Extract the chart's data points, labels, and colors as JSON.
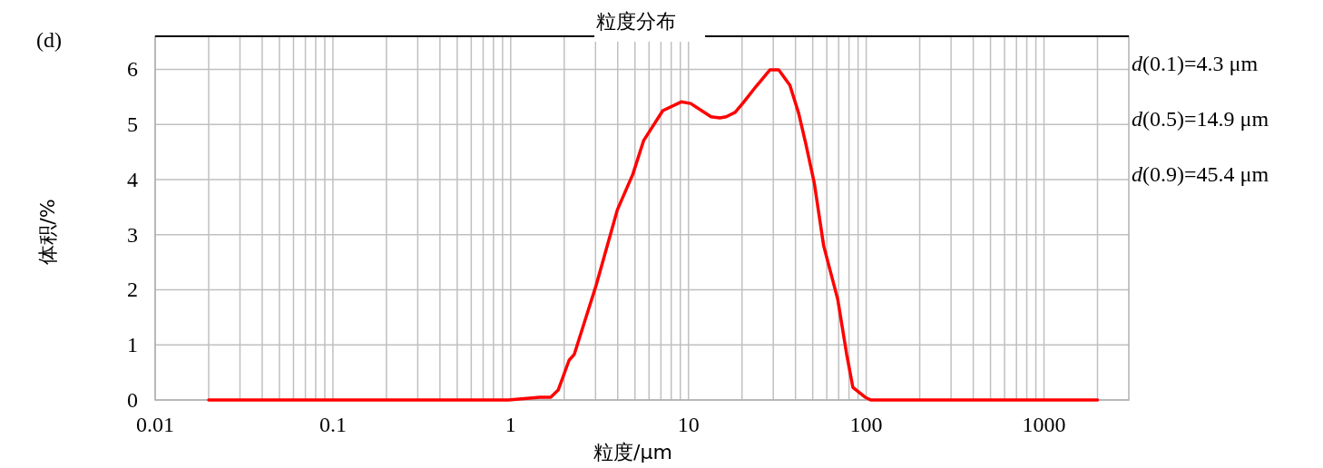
{
  "chart_data": {
    "type": "line",
    "title": "粒度分布",
    "xlabel": "粒度/μm",
    "ylabel": "体积/%",
    "log": "x",
    "grid": true,
    "marker": "none",
    "line_style": "solid",
    "xlim": [
      0.01,
      3000
    ],
    "ylim": [
      0,
      6.6
    ],
    "xticks": [
      0.01,
      {
        "value": 0.02,
        "label": null
      },
      {
        "value": 0.03,
        "label": null
      },
      {
        "value": 0.04,
        "label": null
      },
      {
        "value": 0.05,
        "label": null
      },
      {
        "value": 0.06,
        "label": null
      },
      {
        "value": 0.07,
        "label": null
      },
      {
        "value": 0.08,
        "label": null
      },
      {
        "value": 0.09,
        "label": null
      },
      0.1,
      {
        "value": 0.2,
        "label": null
      },
      {
        "value": 0.3,
        "label": null
      },
      {
        "value": 0.4,
        "label": null
      },
      {
        "value": 0.5,
        "label": null
      },
      {
        "value": 0.6,
        "label": null
      },
      {
        "value": 0.7,
        "label": null
      },
      {
        "value": 0.8,
        "label": null
      },
      {
        "value": 0.9,
        "label": null
      },
      1,
      {
        "value": 2,
        "label": null
      },
      {
        "value": 3,
        "label": null
      },
      {
        "value": 4,
        "label": null
      },
      {
        "value": 5,
        "label": null
      },
      {
        "value": 6,
        "label": null
      },
      {
        "value": 7,
        "label": null
      },
      {
        "value": 8,
        "label": null
      },
      {
        "value": 9,
        "label": null
      },
      10,
      {
        "value": 20,
        "label": null
      },
      {
        "value": 30,
        "label": null
      },
      {
        "value": 40,
        "label": null
      },
      {
        "value": 50,
        "label": null
      },
      {
        "value": 60,
        "label": null
      },
      {
        "value": 70,
        "label": null
      },
      {
        "value": 80,
        "label": null
      },
      {
        "value": 90,
        "label": null
      },
      100,
      {
        "value": 200,
        "label": null
      },
      {
        "value": 300,
        "label": null
      },
      {
        "value": 400,
        "label": null
      },
      {
        "value": 500,
        "label": null
      },
      {
        "value": 600,
        "label": null
      },
      {
        "value": 700,
        "label": null
      },
      {
        "value": 800,
        "label": null
      },
      {
        "value": 900,
        "label": null
      },
      1000,
      {
        "value": 2000,
        "label": null
      }
    ],
    "yticks": [
      0,
      1,
      2,
      3,
      4,
      5,
      6
    ],
    "annotations": [
      "(d)",
      "d(0.1)=4.3 μm",
      "d(0.5)=14.9 μm",
      "d(0.9)=45.4 μm"
    ],
    "series": [
      {
        "color": "#ff0000",
        "x": [
          0.02,
          0.1,
          0.5,
          0.97,
          1.46,
          1.68,
          1.85,
          2.13,
          2.28,
          3.03,
          3.98,
          4.87,
          5.6,
          7.17,
          9.1,
          10.3,
          13.4,
          15.0,
          16.3,
          18.3,
          20.5,
          24.0,
          28.7,
          32.2,
          37.2,
          41.7,
          45.7,
          51.0,
          57.6,
          69.2,
          77.6,
          84.1,
          98.6,
          106,
          500,
          2000
        ],
        "values": [
          0,
          0,
          0,
          0,
          0.05,
          0.05,
          0.18,
          0.72,
          0.83,
          2.09,
          3.45,
          4.1,
          4.71,
          5.25,
          5.41,
          5.38,
          5.14,
          5.12,
          5.14,
          5.22,
          5.41,
          5.69,
          5.99,
          5.99,
          5.71,
          5.2,
          4.65,
          3.94,
          2.8,
          1.82,
          0.83,
          0.23,
          0.05,
          0,
          0,
          0
        ]
      }
    ]
  }
}
